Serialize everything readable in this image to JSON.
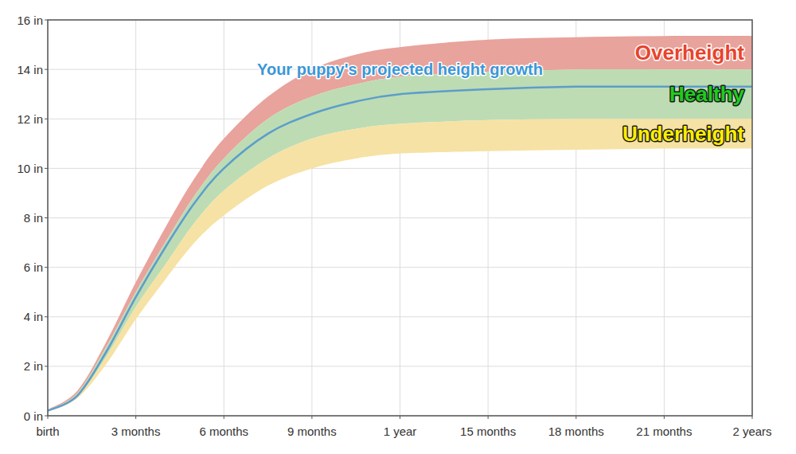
{
  "chart_data": {
    "type": "line",
    "x": [
      0,
      1,
      2,
      3,
      4,
      5,
      6,
      7.5,
      9,
      10.5,
      12,
      15,
      18,
      21,
      24
    ],
    "xlim": [
      0,
      24
    ],
    "xticks": [
      {
        "value": 0,
        "label": "birth"
      },
      {
        "value": 3,
        "label": "3 months"
      },
      {
        "value": 6,
        "label": "6 months"
      },
      {
        "value": 9,
        "label": "9 months"
      },
      {
        "value": 12,
        "label": "1 year"
      },
      {
        "value": 15,
        "label": "15 months"
      },
      {
        "value": 18,
        "label": "18 months"
      },
      {
        "value": 21,
        "label": "21 months"
      },
      {
        "value": 24,
        "label": "2 years"
      }
    ],
    "ylim": [
      0,
      16
    ],
    "yticks": [
      {
        "value": 0,
        "label": "0 in"
      },
      {
        "value": 2,
        "label": "2 in"
      },
      {
        "value": 4,
        "label": "4 in"
      },
      {
        "value": 6,
        "label": "6 in"
      },
      {
        "value": 8,
        "label": "8 in"
      },
      {
        "value": 10,
        "label": "10 in"
      },
      {
        "value": 12,
        "label": "12 in"
      },
      {
        "value": 14,
        "label": "14 in"
      },
      {
        "value": 16,
        "label": "16 in"
      }
    ],
    "grid": true,
    "series": [
      {
        "name": "Overheight",
        "type": "area",
        "color": "#e8a39c",
        "values": [
          0.25,
          1.0,
          3.0,
          5.4,
          7.6,
          9.6,
          11.2,
          12.9,
          14.0,
          14.6,
          14.9,
          15.2,
          15.3,
          15.35,
          15.35
        ],
        "lower": [
          0.22,
          0.9,
          2.8,
          5.0,
          7.0,
          8.9,
          10.4,
          12.0,
          12.9,
          13.4,
          13.7,
          13.9,
          14.0,
          14.0,
          14.0
        ]
      },
      {
        "name": "Healthy",
        "type": "area",
        "color": "#bddcb4",
        "values": [
          0.22,
          0.9,
          2.8,
          5.0,
          7.0,
          8.9,
          10.4,
          12.0,
          12.9,
          13.4,
          13.7,
          13.9,
          14.0,
          14.0,
          14.0
        ],
        "lower": [
          0.18,
          0.75,
          2.4,
          4.4,
          6.1,
          7.8,
          9.1,
          10.4,
          11.2,
          11.6,
          11.8,
          11.95,
          12.0,
          12.0,
          12.0
        ]
      },
      {
        "name": "Underheight",
        "type": "area",
        "color": "#f6e2a4",
        "values": [
          0.18,
          0.75,
          2.4,
          4.4,
          6.1,
          7.8,
          9.1,
          10.4,
          11.2,
          11.6,
          11.8,
          11.95,
          12.0,
          12.0,
          12.0
        ],
        "lower": [
          0.16,
          0.7,
          2.1,
          3.9,
          5.5,
          7.0,
          8.1,
          9.3,
          10.0,
          10.4,
          10.6,
          10.7,
          10.75,
          10.8,
          10.8
        ]
      },
      {
        "name": "Your puppy's projected height growth",
        "type": "line",
        "color": "#5c9dcb",
        "values": [
          0.2,
          0.8,
          2.6,
          4.8,
          6.8,
          8.6,
          10.0,
          11.4,
          12.2,
          12.7,
          13.0,
          13.2,
          13.3,
          13.3,
          13.3
        ]
      }
    ]
  }
}
